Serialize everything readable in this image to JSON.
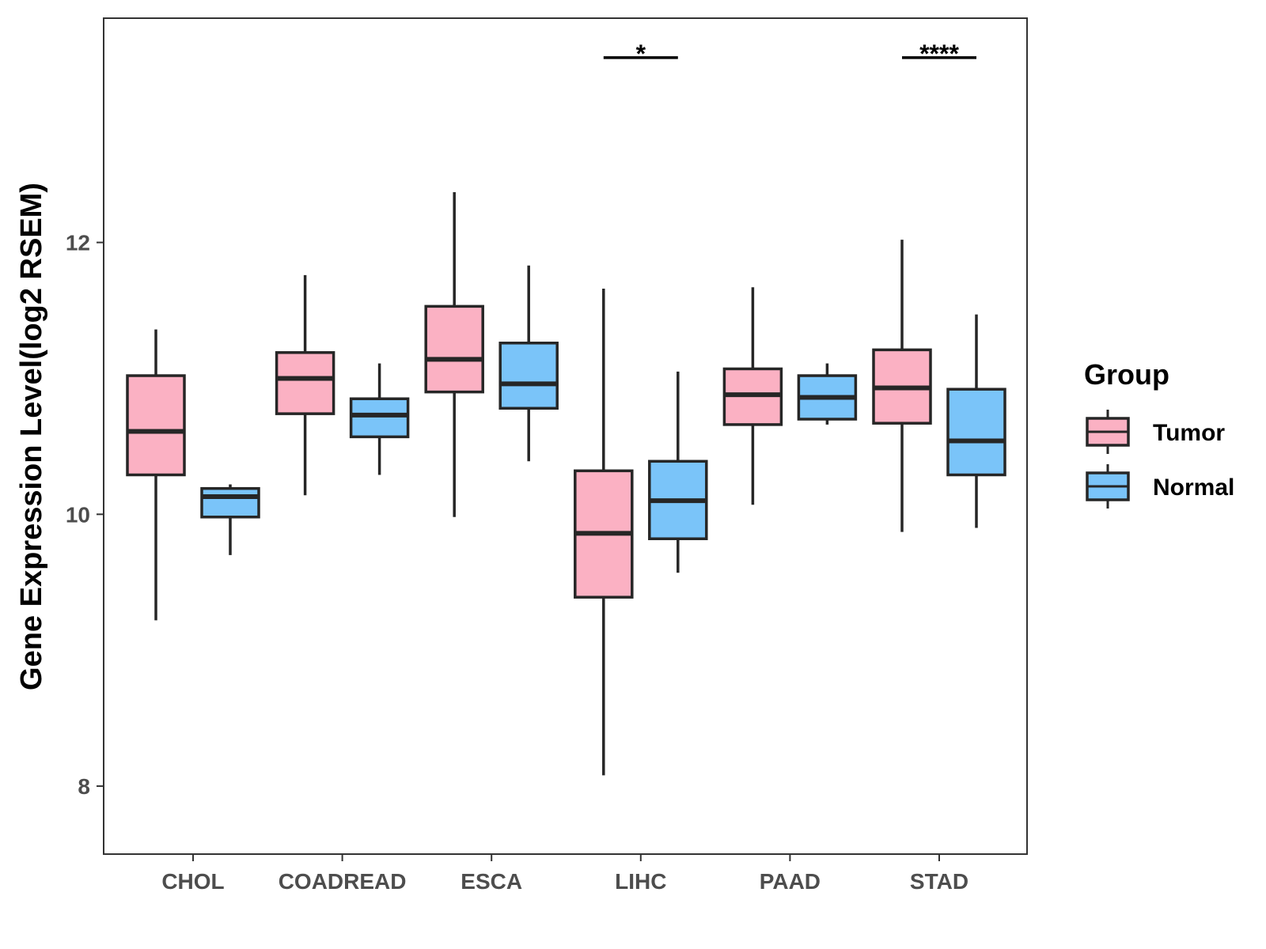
{
  "chart_data": {
    "type": "boxplot",
    "ylabel": "Gene Expression Level(log2 RSEM)",
    "xlabel": "",
    "ylim": [
      7.5,
      13.65
    ],
    "yticks": [
      8,
      10,
      12
    ],
    "categories": [
      "CHOL",
      "COADREAD",
      "ESCA",
      "LIHC",
      "PAAD",
      "STAD"
    ],
    "legend": {
      "title": "Group",
      "position": "right",
      "entries": [
        {
          "name": "Tumor",
          "color": "#fbb1c3"
        },
        {
          "name": "Normal",
          "color": "#7ac4f9"
        }
      ]
    },
    "series": [
      {
        "name": "Tumor",
        "color": "#fbb1c3",
        "boxes": [
          {
            "category": "CHOL",
            "min": 9.22,
            "q1": 10.29,
            "median": 10.61,
            "q3": 11.02,
            "max": 11.36
          },
          {
            "category": "COADREAD",
            "min": 10.14,
            "q1": 10.74,
            "median": 11.0,
            "q3": 11.19,
            "max": 11.76
          },
          {
            "category": "ESCA",
            "min": 9.98,
            "q1": 10.9,
            "median": 11.14,
            "q3": 11.53,
            "max": 12.37
          },
          {
            "category": "LIHC",
            "min": 8.08,
            "q1": 9.39,
            "median": 9.86,
            "q3": 10.32,
            "max": 11.66
          },
          {
            "category": "PAAD",
            "min": 10.07,
            "q1": 10.66,
            "median": 10.88,
            "q3": 11.07,
            "max": 11.67
          },
          {
            "category": "STAD",
            "min": 9.87,
            "q1": 10.67,
            "median": 10.93,
            "q3": 11.21,
            "max": 12.02
          }
        ]
      },
      {
        "name": "Normal",
        "color": "#7ac4f9",
        "boxes": [
          {
            "category": "CHOL",
            "min": 9.7,
            "q1": 9.98,
            "median": 10.13,
            "q3": 10.19,
            "max": 10.22
          },
          {
            "category": "COADREAD",
            "min": 10.29,
            "q1": 10.57,
            "median": 10.73,
            "q3": 10.85,
            "max": 11.11
          },
          {
            "category": "ESCA",
            "min": 10.39,
            "q1": 10.78,
            "median": 10.96,
            "q3": 11.26,
            "max": 11.83
          },
          {
            "category": "LIHC",
            "min": 9.57,
            "q1": 9.82,
            "median": 10.1,
            "q3": 10.39,
            "max": 11.05
          },
          {
            "category": "PAAD",
            "min": 10.66,
            "q1": 10.7,
            "median": 10.86,
            "q3": 11.02,
            "max": 11.11
          },
          {
            "category": "STAD",
            "min": 9.9,
            "q1": 10.29,
            "median": 10.54,
            "q3": 10.92,
            "max": 11.47
          }
        ]
      }
    ],
    "annotations": [
      {
        "category": "LIHC",
        "label": "*",
        "y": 13.36
      },
      {
        "category": "STAD",
        "label": "****",
        "y": 13.36
      }
    ]
  }
}
